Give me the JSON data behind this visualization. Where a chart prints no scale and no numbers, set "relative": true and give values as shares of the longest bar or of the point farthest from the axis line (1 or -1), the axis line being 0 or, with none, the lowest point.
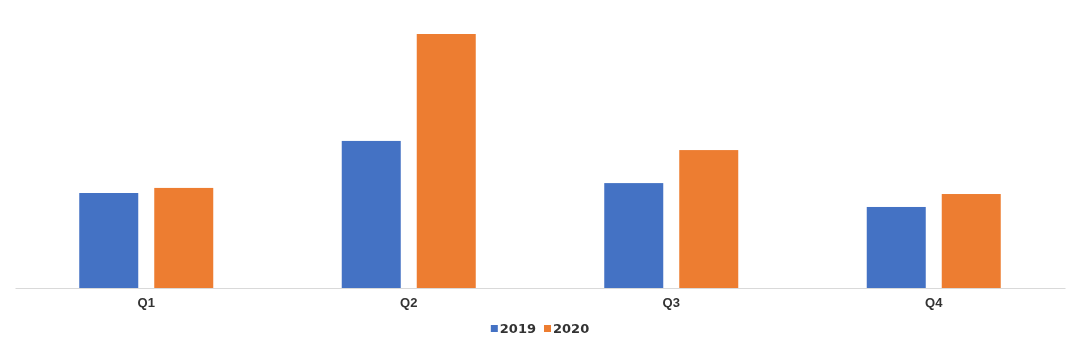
{
  "chart_data": {
    "type": "bar",
    "relative": true,
    "categories": [
      "Q1",
      "Q2",
      "Q3",
      "Q4"
    ],
    "series": [
      {
        "name": "2019",
        "color": "#4472c4",
        "values": [
          0.374,
          0.579,
          0.413,
          0.319
        ]
      },
      {
        "name": "2020",
        "color": "#ed7d31",
        "values": [
          0.394,
          1,
          0.543,
          0.37
        ]
      }
    ],
    "legend": "bottom",
    "grid": false
  }
}
